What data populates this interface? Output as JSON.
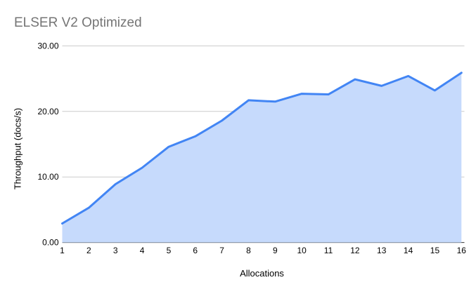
{
  "chart_data": {
    "type": "area",
    "title": "ELSER V2 Optimized",
    "xlabel": "Allocations",
    "ylabel": "Throughput (docs/s)",
    "categories": [
      "1",
      "2",
      "3",
      "4",
      "5",
      "6",
      "7",
      "8",
      "9",
      "10",
      "11",
      "12",
      "13",
      "14",
      "15",
      "16"
    ],
    "values": [
      2.9,
      5.3,
      8.9,
      11.4,
      14.6,
      16.2,
      18.6,
      21.7,
      21.5,
      22.7,
      22.6,
      24.9,
      23.9,
      25.4,
      23.2,
      25.9
    ],
    "ylim": [
      0,
      30
    ],
    "y_ticks": [
      {
        "value": 0,
        "label": "0.00"
      },
      {
        "value": 10,
        "label": "10.00"
      },
      {
        "value": 20,
        "label": "20.00"
      },
      {
        "value": 30,
        "label": "30.00"
      }
    ],
    "grid": true,
    "legend": "none",
    "colors": {
      "line": "#4285f4",
      "fill": "#c6dafc",
      "grid": "#cccccc",
      "axis": "#333333",
      "title": "#757575",
      "tick": "#000000"
    }
  }
}
